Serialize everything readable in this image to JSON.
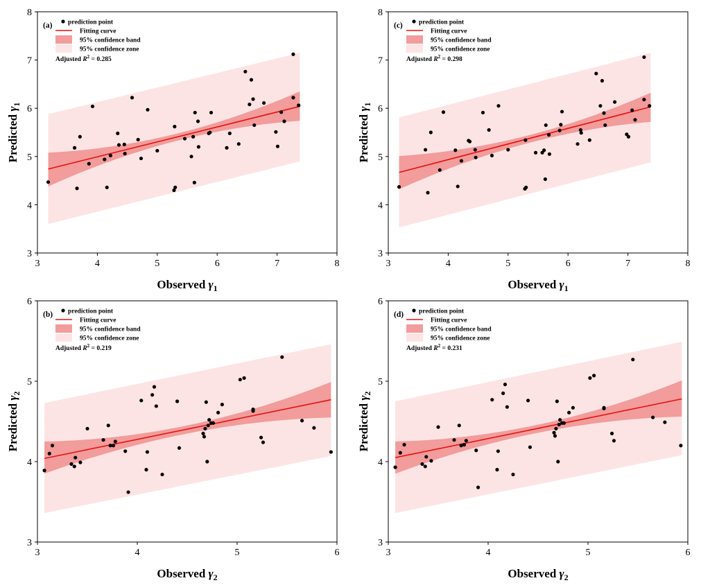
{
  "chart_data": [
    {
      "type": "scatter",
      "panel_label": "(a)",
      "xlabel": "Observed γ1",
      "ylabel": "Predicted γ1",
      "xlim": [
        3,
        8
      ],
      "ylim": [
        3,
        8
      ],
      "xticks": [
        3,
        4,
        5,
        6,
        7,
        8
      ],
      "yticks": [
        3,
        4,
        5,
        6,
        7,
        8
      ],
      "legend": [
        "prediction point",
        "Fitting curve",
        "95% confidence band",
        "95% confidence zone"
      ],
      "legend_position": "top-left",
      "annotation": "Adjusted R² = 0.285",
      "fit": {
        "x": [
          3.18,
          7.38
        ],
        "y": [
          4.74,
          6.04
        ]
      },
      "confidence_band": {
        "x": [
          3.18,
          5.28,
          7.38
        ],
        "upper": [
          5.08,
          5.46,
          6.35
        ],
        "lower": [
          4.38,
          5.31,
          5.74
        ]
      },
      "confidence_zone": {
        "x": [
          3.18,
          7.38
        ],
        "upper": [
          5.88,
          7.15
        ],
        "lower": [
          3.6,
          4.9
        ]
      },
      "points": [
        [
          3.18,
          4.47
        ],
        [
          3.62,
          5.18
        ],
        [
          3.66,
          4.34
        ],
        [
          3.71,
          5.41
        ],
        [
          3.86,
          4.85
        ],
        [
          3.92,
          6.04
        ],
        [
          4.12,
          4.94
        ],
        [
          4.16,
          4.36
        ],
        [
          4.22,
          5.02
        ],
        [
          4.34,
          5.48
        ],
        [
          4.36,
          5.24
        ],
        [
          4.45,
          5.25
        ],
        [
          4.46,
          5.06
        ],
        [
          4.58,
          6.22
        ],
        [
          4.68,
          5.35
        ],
        [
          4.73,
          4.96
        ],
        [
          4.84,
          5.97
        ],
        [
          5.0,
          5.12
        ],
        [
          5.28,
          4.3
        ],
        [
          5.3,
          4.36
        ],
        [
          5.29,
          5.62
        ],
        [
          5.46,
          5.37
        ],
        [
          5.57,
          5.0
        ],
        [
          5.6,
          5.41
        ],
        [
          5.62,
          4.46
        ],
        [
          5.63,
          5.91
        ],
        [
          5.68,
          5.73
        ],
        [
          5.69,
          5.2
        ],
        [
          5.86,
          5.48
        ],
        [
          5.88,
          5.5
        ],
        [
          5.9,
          5.91
        ],
        [
          6.16,
          5.18
        ],
        [
          6.21,
          5.48
        ],
        [
          6.36,
          5.26
        ],
        [
          6.47,
          6.76
        ],
        [
          6.54,
          6.08
        ],
        [
          6.57,
          6.59
        ],
        [
          6.6,
          6.19
        ],
        [
          6.62,
          5.65
        ],
        [
          6.78,
          6.11
        ],
        [
          6.98,
          5.51
        ],
        [
          7.01,
          5.21
        ],
        [
          7.07,
          5.92
        ],
        [
          7.12,
          5.73
        ],
        [
          7.27,
          6.22
        ],
        [
          7.27,
          7.12
        ],
        [
          7.36,
          6.06
        ]
      ]
    },
    {
      "type": "scatter",
      "panel_label": "(c)",
      "xlabel": "Observed γ1",
      "ylabel": "Predicted γ1",
      "xlim": [
        3,
        8
      ],
      "ylim": [
        3,
        8
      ],
      "xticks": [
        3,
        4,
        5,
        6,
        7,
        8
      ],
      "yticks": [
        3,
        4,
        5,
        6,
        7,
        8
      ],
      "legend": [
        "prediction point",
        "Fitting curve",
        "95% confidence band",
        "95% confidence zone"
      ],
      "legend_position": "top-left",
      "annotation": "Adjusted R² = 0.298",
      "fit": {
        "x": [
          3.18,
          7.38
        ],
        "y": [
          4.67,
          6.03
        ]
      },
      "confidence_band": {
        "x": [
          3.18,
          5.28,
          7.38
        ],
        "upper": [
          5.01,
          5.42,
          6.32
        ],
        "lower": [
          4.32,
          5.26,
          5.72
        ]
      },
      "confidence_zone": {
        "x": [
          3.18,
          7.38
        ],
        "upper": [
          5.81,
          7.15
        ],
        "lower": [
          3.53,
          4.88
        ]
      },
      "points": [
        [
          3.18,
          4.37
        ],
        [
          3.62,
          5.14
        ],
        [
          3.66,
          4.25
        ],
        [
          3.71,
          5.5
        ],
        [
          3.86,
          4.72
        ],
        [
          3.92,
          5.92
        ],
        [
          4.12,
          5.13
        ],
        [
          4.16,
          4.38
        ],
        [
          4.22,
          4.91
        ],
        [
          4.34,
          5.33
        ],
        [
          4.36,
          5.31
        ],
        [
          4.45,
          5.14
        ],
        [
          4.46,
          4.98
        ],
        [
          4.58,
          5.91
        ],
        [
          4.68,
          5.55
        ],
        [
          4.73,
          5.02
        ],
        [
          4.84,
          6.05
        ],
        [
          5.0,
          5.14
        ],
        [
          5.28,
          4.33
        ],
        [
          5.3,
          4.36
        ],
        [
          5.29,
          5.34
        ],
        [
          5.46,
          5.08
        ],
        [
          5.57,
          5.08
        ],
        [
          5.6,
          5.13
        ],
        [
          5.62,
          4.53
        ],
        [
          5.63,
          5.65
        ],
        [
          5.68,
          5.45
        ],
        [
          5.69,
          5.05
        ],
        [
          5.86,
          5.54
        ],
        [
          5.88,
          5.66
        ],
        [
          5.9,
          5.93
        ],
        [
          6.16,
          5.26
        ],
        [
          6.21,
          5.55
        ],
        [
          6.22,
          5.49
        ],
        [
          6.36,
          5.34
        ],
        [
          6.47,
          6.72
        ],
        [
          6.54,
          6.05
        ],
        [
          6.57,
          6.57
        ],
        [
          6.6,
          5.9
        ],
        [
          6.62,
          5.65
        ],
        [
          6.78,
          6.13
        ],
        [
          6.98,
          5.46
        ],
        [
          7.01,
          5.41
        ],
        [
          7.07,
          5.96
        ],
        [
          7.12,
          5.76
        ],
        [
          7.27,
          6.18
        ],
        [
          7.27,
          7.06
        ],
        [
          7.36,
          6.05
        ]
      ]
    },
    {
      "type": "scatter",
      "panel_label": "(b)",
      "xlabel": "Observed γ2",
      "ylabel": "Predicted γ2",
      "xlim": [
        3,
        6
      ],
      "ylim": [
        3,
        6
      ],
      "xticks": [
        3,
        4,
        5,
        6
      ],
      "yticks": [
        3,
        4,
        5,
        6
      ],
      "legend": [
        "prediction point",
        "Fitting curve",
        "95% confidence band",
        "95% confidence zone"
      ],
      "legend_position": "top-left",
      "annotation": "Adjusted R² = 0.219",
      "fit": {
        "x": [
          3.07,
          5.94
        ],
        "y": [
          4.04,
          4.77
        ]
      },
      "confidence_band": {
        "x": [
          3.07,
          4.5,
          5.94
        ],
        "upper": [
          4.25,
          4.45,
          4.99
        ],
        "lower": [
          3.85,
          4.35,
          4.55
        ]
      },
      "confidence_zone": {
        "x": [
          3.07,
          5.94
        ],
        "upper": [
          4.73,
          5.46
        ],
        "lower": [
          3.36,
          4.07
        ]
      },
      "points": [
        [
          3.07,
          3.89
        ],
        [
          3.12,
          4.1
        ],
        [
          3.15,
          4.2
        ],
        [
          3.34,
          3.97
        ],
        [
          3.37,
          3.94
        ],
        [
          3.38,
          4.05
        ],
        [
          3.43,
          3.99
        ],
        [
          3.5,
          4.41
        ],
        [
          3.66,
          4.27
        ],
        [
          3.71,
          4.45
        ],
        [
          3.73,
          4.2
        ],
        [
          3.76,
          4.2
        ],
        [
          3.78,
          4.25
        ],
        [
          3.88,
          4.13
        ],
        [
          3.91,
          3.62
        ],
        [
          4.04,
          4.76
        ],
        [
          4.09,
          3.9
        ],
        [
          4.1,
          4.12
        ],
        [
          4.15,
          4.83
        ],
        [
          4.17,
          4.93
        ],
        [
          4.19,
          4.69
        ],
        [
          4.25,
          3.84
        ],
        [
          4.4,
          4.75
        ],
        [
          4.42,
          4.17
        ],
        [
          4.66,
          4.35
        ],
        [
          4.67,
          4.31
        ],
        [
          4.68,
          4.41
        ],
        [
          4.69,
          4.74
        ],
        [
          4.7,
          4.0
        ],
        [
          4.71,
          4.45
        ],
        [
          4.72,
          4.52
        ],
        [
          4.74,
          4.48
        ],
        [
          4.76,
          4.48
        ],
        [
          4.81,
          4.61
        ],
        [
          4.85,
          4.71
        ],
        [
          5.03,
          5.02
        ],
        [
          5.07,
          5.04
        ],
        [
          5.16,
          4.65
        ],
        [
          5.16,
          4.63
        ],
        [
          5.24,
          4.3
        ],
        [
          5.26,
          4.24
        ],
        [
          5.45,
          5.3
        ],
        [
          5.65,
          4.51
        ],
        [
          5.77,
          4.42
        ],
        [
          5.94,
          4.12
        ]
      ]
    },
    {
      "type": "scatter",
      "panel_label": "(d)",
      "xlabel": "Observed γ2",
      "ylabel": "Predicted γ2",
      "xlim": [
        3,
        6
      ],
      "ylim": [
        3,
        6
      ],
      "xticks": [
        3,
        4,
        5,
        6
      ],
      "yticks": [
        3,
        4,
        5,
        6
      ],
      "legend": [
        "prediction point",
        "Fitting curve",
        "95% confidence band",
        "95% confidence zone"
      ],
      "legend_position": "top-left",
      "annotation": "Adjusted R² = 0.231",
      "fit": {
        "x": [
          3.07,
          5.94
        ],
        "y": [
          4.05,
          4.78
        ]
      },
      "confidence_band": {
        "x": [
          3.07,
          4.5,
          5.94
        ],
        "upper": [
          4.25,
          4.46,
          5.01
        ],
        "lower": [
          3.85,
          4.36,
          4.56
        ]
      },
      "confidence_zone": {
        "x": [
          3.07,
          5.94
        ],
        "upper": [
          4.75,
          5.49
        ],
        "lower": [
          3.36,
          4.08
        ]
      },
      "points": [
        [
          3.07,
          3.93
        ],
        [
          3.12,
          4.11
        ],
        [
          3.16,
          4.21
        ],
        [
          3.34,
          3.97
        ],
        [
          3.37,
          3.94
        ],
        [
          3.38,
          4.06
        ],
        [
          3.43,
          4.01
        ],
        [
          3.5,
          4.43
        ],
        [
          3.66,
          4.27
        ],
        [
          3.71,
          4.45
        ],
        [
          3.73,
          4.2
        ],
        [
          3.76,
          4.21
        ],
        [
          3.78,
          4.26
        ],
        [
          3.88,
          4.14
        ],
        [
          3.9,
          3.68
        ],
        [
          4.04,
          4.77
        ],
        [
          4.09,
          3.9
        ],
        [
          4.1,
          4.13
        ],
        [
          4.15,
          4.85
        ],
        [
          4.17,
          4.96
        ],
        [
          4.19,
          4.68
        ],
        [
          4.25,
          3.84
        ],
        [
          4.4,
          4.76
        ],
        [
          4.42,
          4.18
        ],
        [
          4.66,
          4.36
        ],
        [
          4.67,
          4.32
        ],
        [
          4.68,
          4.41
        ],
        [
          4.69,
          4.75
        ],
        [
          4.7,
          4.0
        ],
        [
          4.71,
          4.46
        ],
        [
          4.72,
          4.52
        ],
        [
          4.74,
          4.48
        ],
        [
          4.76,
          4.48
        ],
        [
          4.81,
          4.61
        ],
        [
          4.85,
          4.67
        ],
        [
          5.02,
          5.04
        ],
        [
          5.06,
          5.07
        ],
        [
          5.16,
          4.67
        ],
        [
          5.16,
          4.66
        ],
        [
          5.24,
          4.35
        ],
        [
          5.26,
          4.26
        ],
        [
          5.45,
          5.27
        ],
        [
          5.65,
          4.55
        ],
        [
          5.77,
          4.49
        ],
        [
          5.93,
          4.2
        ]
      ]
    }
  ],
  "colors": {
    "zone": "#fde4e4",
    "band": "#f29c9c",
    "fit": "#e8110f",
    "point": "#000000",
    "axis": "#000000"
  }
}
